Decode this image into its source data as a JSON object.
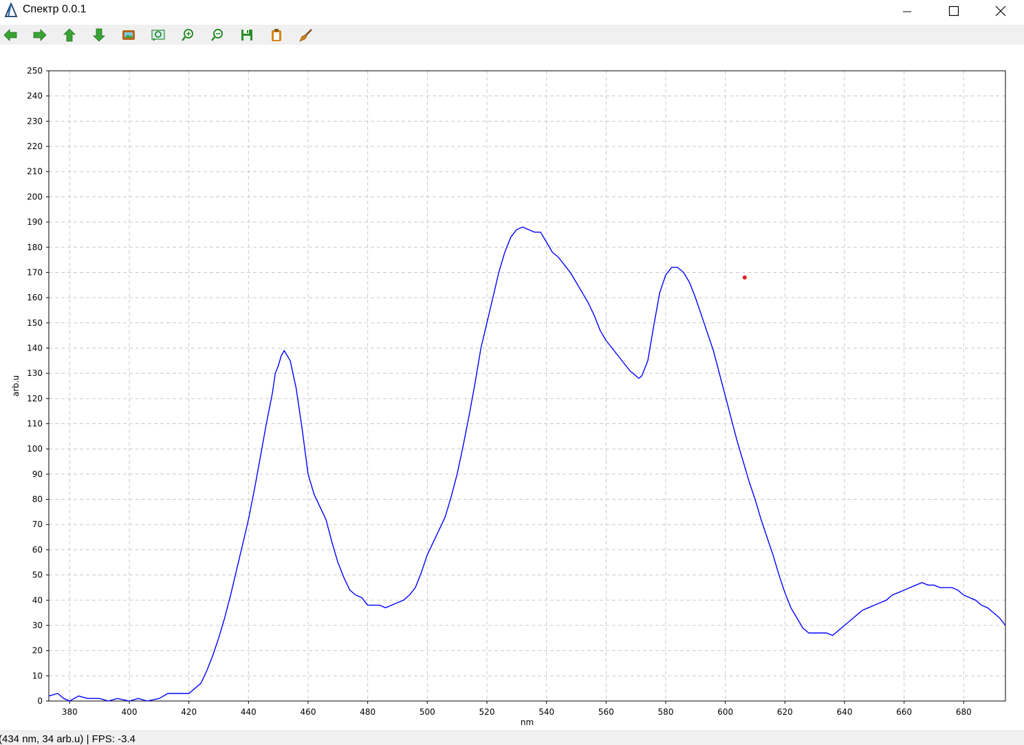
{
  "window": {
    "title": "Спектр 0.0.1",
    "controls": [
      "minimize",
      "maximize",
      "close"
    ]
  },
  "toolbar": {
    "buttons": [
      {
        "icon": "arrow-left-icon",
        "color": "#3aa335"
      },
      {
        "icon": "arrow-right-icon",
        "color": "#3aa335"
      },
      {
        "icon": "arrow-up-icon",
        "color": "#3aa335"
      },
      {
        "icon": "arrow-down-icon",
        "color": "#3aa335"
      },
      {
        "icon": "picture-icon",
        "color": "#b5651d"
      },
      {
        "icon": "zoom-fit-icon",
        "color": "#2a8a2a"
      },
      {
        "icon": "zoom-in-icon",
        "color": "#2a8a2a"
      },
      {
        "icon": "zoom-out-icon",
        "color": "#2a8a2a"
      },
      {
        "icon": "save-icon",
        "color": "#2a8a2a"
      },
      {
        "icon": "clipboard-icon",
        "color": "#d4861a"
      },
      {
        "icon": "brush-icon",
        "color": "#b5651d"
      }
    ]
  },
  "chart_data": {
    "type": "line",
    "title": "",
    "xlabel": "nm",
    "ylabel": "arb.u",
    "xlim": [
      373,
      694
    ],
    "ylim": [
      0,
      250
    ],
    "xticks": [
      380,
      400,
      420,
      440,
      460,
      480,
      500,
      520,
      540,
      560,
      580,
      600,
      620,
      640,
      660,
      680
    ],
    "yticks": [
      0,
      10,
      20,
      30,
      40,
      50,
      60,
      70,
      80,
      90,
      100,
      110,
      120,
      130,
      140,
      150,
      160,
      170,
      180,
      190,
      200,
      210,
      220,
      230,
      240,
      250
    ],
    "grid": true,
    "series": [
      {
        "color": "#0000ff",
        "x": [
          373,
          376,
          378,
          380,
          383,
          386,
          390,
          393,
          396,
          400,
          403,
          406,
          410,
          413,
          416,
          420,
          422,
          424,
          426,
          428,
          430,
          432,
          434,
          436,
          438,
          440,
          442,
          444,
          446,
          448,
          449,
          450,
          451,
          452,
          454,
          456,
          458,
          460,
          462,
          464,
          466,
          468,
          470,
          472,
          474,
          476,
          478,
          480,
          482,
          484,
          486,
          488,
          490,
          492,
          494,
          496,
          498,
          500,
          502,
          504,
          506,
          508,
          510,
          512,
          514,
          516,
          518,
          520,
          522,
          524,
          526,
          528,
          530,
          532,
          534,
          536,
          538,
          540,
          542,
          544,
          546,
          548,
          550,
          552,
          554,
          556,
          558,
          560,
          562,
          564,
          566,
          568,
          570,
          571,
          572,
          574,
          576,
          578,
          580,
          582,
          584,
          586,
          588,
          590,
          592,
          594,
          596,
          598,
          600,
          602,
          604,
          606,
          608,
          610,
          612,
          614,
          616,
          618,
          620,
          622,
          624,
          626,
          628,
          630,
          632,
          634,
          636,
          638,
          640,
          642,
          644,
          646,
          648,
          650,
          652,
          654,
          656,
          658,
          660,
          662,
          664,
          666,
          668,
          670,
          672,
          674,
          676,
          678,
          680,
          682,
          684,
          686,
          688,
          690,
          692,
          694
        ],
        "y": [
          2,
          3,
          1,
          0,
          2,
          1,
          1,
          0,
          1,
          0,
          1,
          0,
          1,
          3,
          3,
          3,
          5,
          7,
          12,
          18,
          25,
          33,
          42,
          52,
          62,
          72,
          84,
          97,
          110,
          122,
          130,
          133,
          137,
          139,
          135,
          124,
          108,
          90,
          82,
          77,
          72,
          63,
          55,
          49,
          44,
          42,
          41,
          38,
          38,
          38,
          37,
          38,
          39,
          40,
          42,
          45,
          51,
          58,
          63,
          68,
          73,
          81,
          90,
          101,
          113,
          126,
          140,
          150,
          160,
          170,
          178,
          184,
          187,
          188,
          187,
          186,
          186,
          182,
          178,
          176,
          173,
          170,
          166,
          162,
          158,
          153,
          147,
          143,
          140,
          137,
          134,
          131,
          129,
          128,
          129,
          135,
          149,
          162,
          169,
          172,
          172,
          170,
          166,
          160,
          153,
          146,
          139,
          130,
          121,
          112,
          103,
          95,
          87,
          80,
          72,
          65,
          58,
          50,
          43,
          37,
          33,
          29,
          27,
          27,
          27,
          27,
          26,
          28,
          30,
          32,
          34,
          36,
          37,
          38,
          39,
          40,
          42,
          43,
          44,
          45,
          46,
          47,
          46,
          46,
          45,
          45,
          45,
          44,
          42,
          41,
          40,
          38,
          37,
          35,
          33,
          30
        ]
      }
    ],
    "marker": {
      "x": 606.5,
      "y": 168,
      "color": "#e02020"
    }
  },
  "status": {
    "text": "(434 nm, 34 arb.u) | FPS: -3.4"
  }
}
